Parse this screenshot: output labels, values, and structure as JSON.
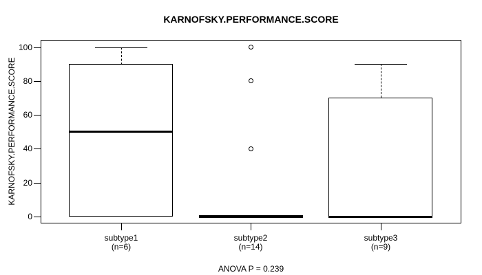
{
  "chart_data": {
    "type": "boxplot",
    "title": "KARNOFSKY.PERFORMANCE.SCORE",
    "ylabel": "KARNOFSKY.PERFORMANCE.SCORE",
    "xlabel": "",
    "subtitle": "ANOVA P = 0.239",
    "ylim": [
      0,
      100
    ],
    "yticks": [
      0,
      20,
      40,
      60,
      80,
      100
    ],
    "grid": false,
    "colors": {
      "foreground": "#000000",
      "background": "#ffffff"
    },
    "groups": [
      {
        "label": "subtype1",
        "sublabel": "(n=6)",
        "n": 6,
        "whisker_low": 0,
        "q1": 0,
        "median": 50,
        "q3": 90,
        "whisker_high": 100,
        "outliers": []
      },
      {
        "label": "subtype2",
        "sublabel": "(n=14)",
        "n": 14,
        "whisker_low": 0,
        "q1": 0,
        "median": 0,
        "q3": 0,
        "whisker_high": 0,
        "outliers": [
          40,
          80,
          100
        ]
      },
      {
        "label": "subtype3",
        "sublabel": "(n=9)",
        "n": 9,
        "whisker_low": 0,
        "q1": 0,
        "median": 0,
        "q3": 70,
        "whisker_high": 90,
        "outliers": []
      }
    ]
  }
}
